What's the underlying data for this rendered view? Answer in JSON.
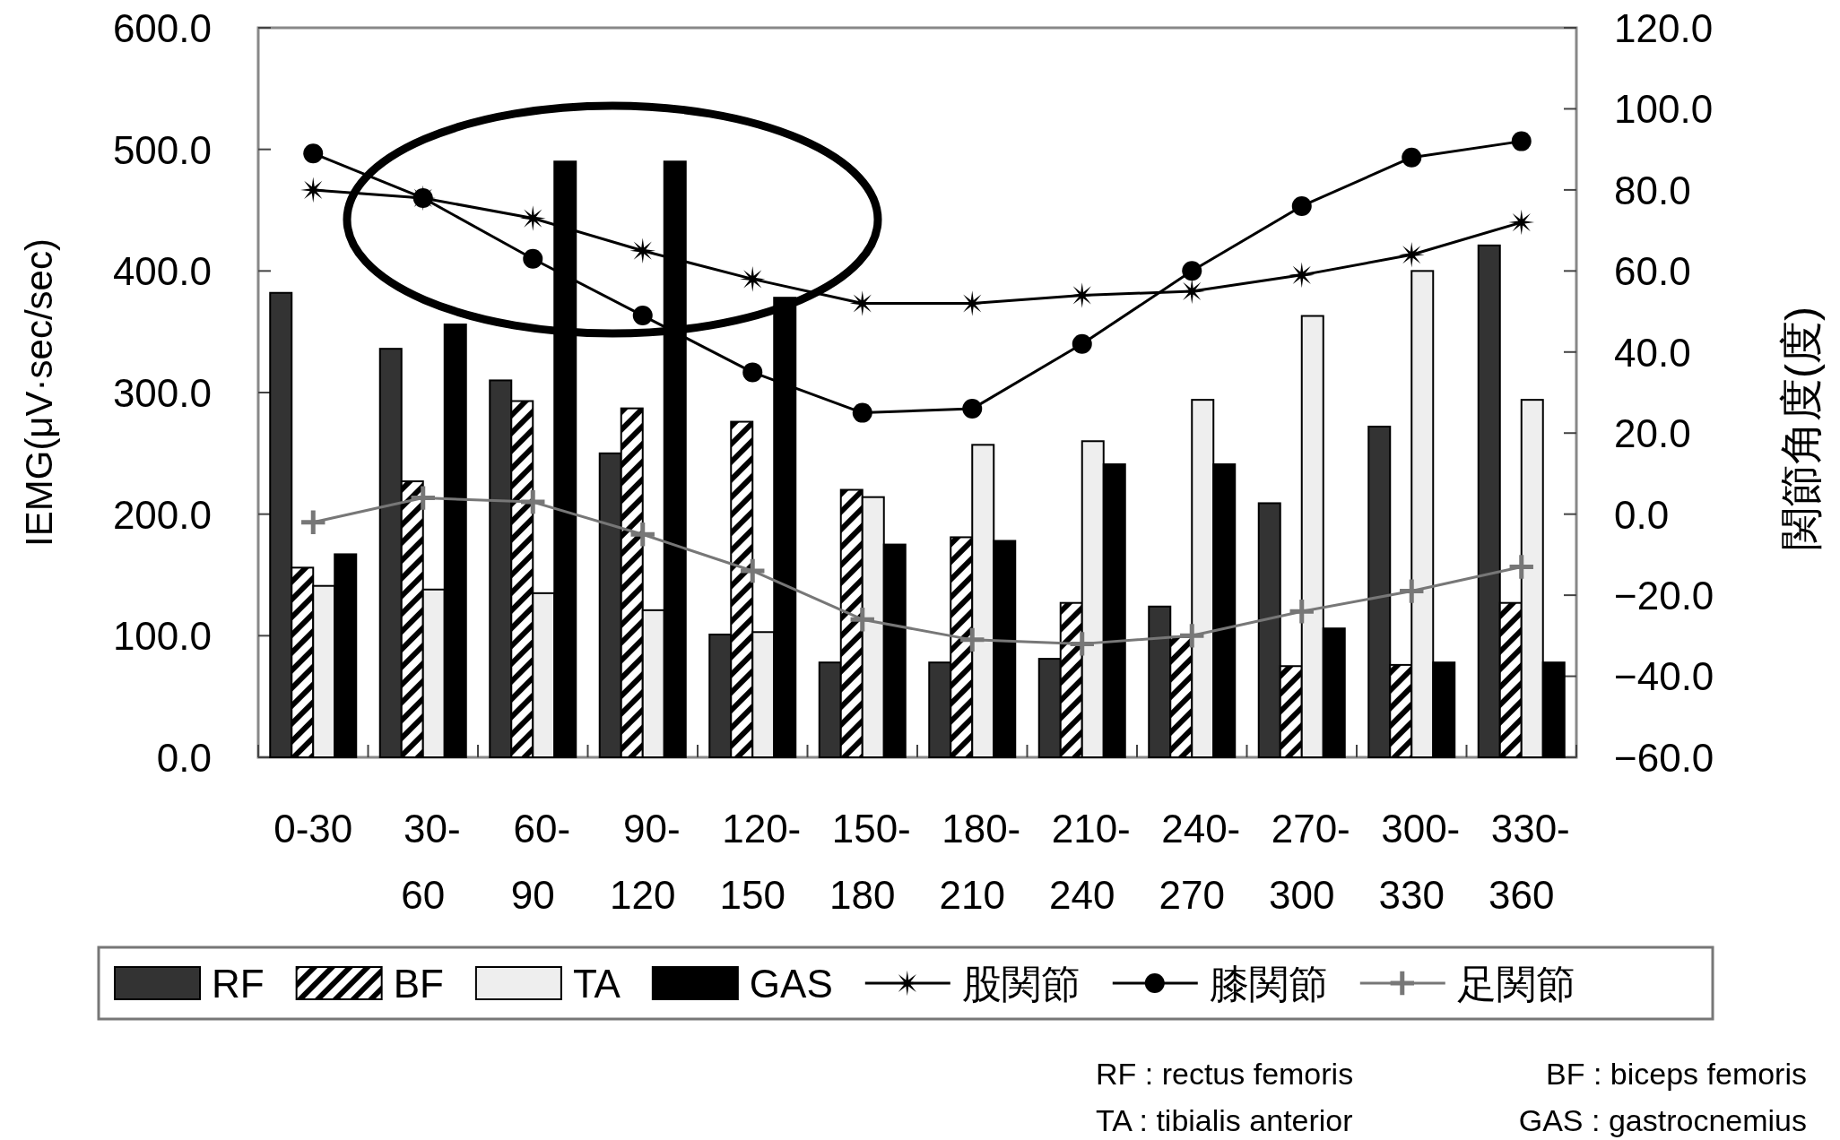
{
  "chart_data": {
    "type": "bar",
    "ylabel": "IEMG(μV·sec/sec)",
    "y2label": "関節角度(度)",
    "categories": [
      "0-30",
      "30-60",
      "60-90",
      "90-120",
      "120-150",
      "150-180",
      "180-210",
      "210-240",
      "240-270",
      "270-300",
      "300-330",
      "330-360"
    ],
    "series": [
      {
        "name": "RF",
        "color": "#333333",
        "values": [
          382,
          336,
          310,
          250,
          101,
          78,
          78,
          81,
          124,
          209,
          272,
          421
        ]
      },
      {
        "name": "BF",
        "color": "#000000",
        "values": [
          156,
          227,
          293,
          287,
          276,
          220,
          181,
          127,
          99,
          75,
          76,
          127
        ]
      },
      {
        "name": "TA",
        "color": "#eeeeee",
        "values": [
          141,
          138,
          135,
          121,
          103,
          214,
          257,
          260,
          294,
          363,
          400,
          294
        ]
      },
      {
        "name": "GAS",
        "color": "#000000",
        "values": [
          167,
          356,
          490,
          490,
          378,
          175,
          178,
          241,
          241,
          106,
          78,
          78
        ]
      },
      {
        "name": "股関節",
        "type": "line",
        "axis": "y2",
        "color": "#000000",
        "marker": "star",
        "values": [
          80,
          78,
          73,
          65,
          58,
          52,
          52,
          54,
          55,
          59,
          64,
          72
        ]
      },
      {
        "name": "膝関節",
        "type": "line",
        "axis": "y2",
        "color": "#000000",
        "marker": "circle",
        "values": [
          89,
          78,
          63,
          49,
          35,
          25,
          26,
          42,
          60,
          76,
          88,
          92
        ]
      },
      {
        "name": "足関節",
        "type": "line",
        "axis": "y2",
        "color": "#777777",
        "marker": "cross",
        "values": [
          -2,
          4,
          3,
          -5,
          -14,
          -26,
          -31,
          -32,
          -30,
          -24,
          -19,
          -13
        ]
      }
    ],
    "ylim": [
      0,
      600
    ],
    "yticks": [
      {
        "value": 0,
        "label": "0.0"
      },
      {
        "value": 100,
        "label": "100.0"
      },
      {
        "value": 200,
        "label": "200.0"
      },
      {
        "value": 300,
        "label": "300.0"
      },
      {
        "value": 400,
        "label": "400.0"
      },
      {
        "value": 500,
        "label": "500.0"
      },
      {
        "value": 600,
        "label": "600.0"
      }
    ],
    "y2lim": [
      -60,
      120
    ],
    "y2ticks": [
      {
        "value": -60,
        "label": "−60.0"
      },
      {
        "value": -40,
        "label": "−40.0"
      },
      {
        "value": -20,
        "label": "−20.0"
      },
      {
        "value": 0,
        "label": "0.0"
      },
      {
        "value": 20,
        "label": "20.0"
      },
      {
        "value": 40,
        "label": "40.0"
      },
      {
        "value": 60,
        "label": "60.0"
      },
      {
        "value": 80,
        "label": "80.0"
      },
      {
        "value": 100,
        "label": "100.0"
      },
      {
        "value": 120,
        "label": "120.0"
      }
    ],
    "legend": "bottom",
    "annotations": [
      "RF : rectus femoris",
      "BF : biceps femoris",
      "TA : tibialis anterior",
      "GAS : gastrocnemius"
    ]
  }
}
